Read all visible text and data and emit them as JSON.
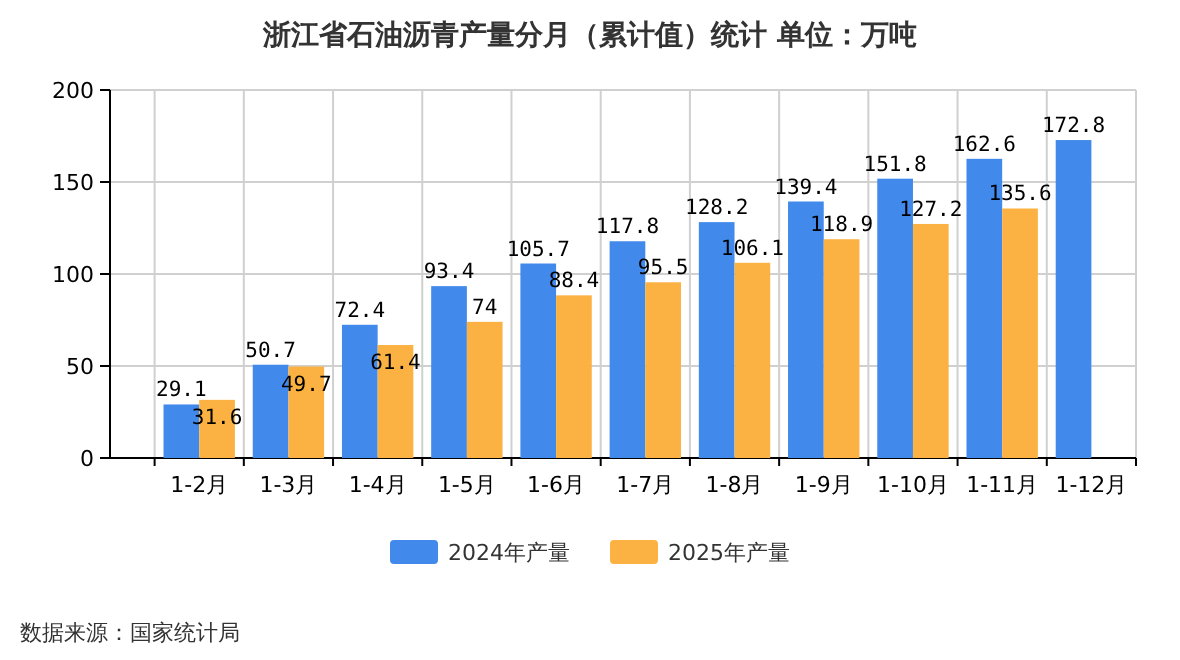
{
  "chart_data": {
    "type": "bar",
    "title": "浙江省石油沥青产量分月（累计值）统计  单位：万吨",
    "categories": [
      "1-2月",
      "1-3月",
      "1-4月",
      "1-5月",
      "1-6月",
      "1-7月",
      "1-8月",
      "1-9月",
      "1-10月",
      "1-11月",
      "1-12月"
    ],
    "series": [
      {
        "name": "2024年产量",
        "color": "#4289ec",
        "values": [
          29.1,
          50.7,
          72.4,
          93.4,
          105.7,
          117.8,
          128.2,
          139.4,
          151.8,
          162.6,
          172.8
        ]
      },
      {
        "name": "2025年产量",
        "color": "#fbb242",
        "values": [
          31.6,
          49.7,
          61.4,
          74,
          88.4,
          95.5,
          106.1,
          118.9,
          127.2,
          135.6,
          null
        ]
      }
    ],
    "ylim": [
      0,
      200
    ],
    "yticks": [
      0,
      50,
      100,
      150,
      200
    ],
    "grid": true,
    "legend": "bottom",
    "data_labels": true,
    "annotations": [
      "数据来源：国家统计局"
    ]
  }
}
